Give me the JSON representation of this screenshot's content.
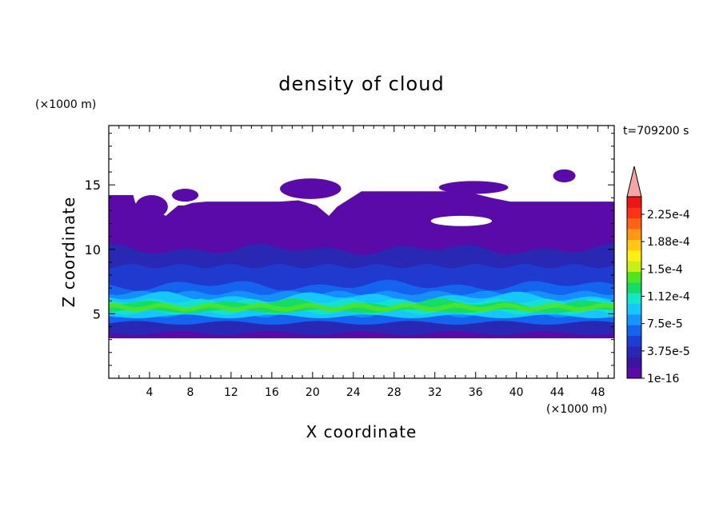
{
  "chart_data": {
    "type": "heatmap",
    "title": "density of cloud",
    "time_label": "t=709200 s",
    "xlabel": "X coordinate",
    "ylabel": "Z coordinate",
    "x_unit": "(×1000 m)",
    "y_unit": "(×1000 m)",
    "xlim": [
      0,
      49.6
    ],
    "ylim": [
      0,
      19.6
    ],
    "x_ticks": [
      4,
      8,
      12,
      16,
      20,
      24,
      28,
      32,
      36,
      40,
      44,
      48
    ],
    "y_ticks": [
      5,
      10,
      15
    ],
    "colorbar": {
      "label_levels": [
        "2.25e-4",
        "1.88e-4",
        "1.5e-4",
        "1.12e-4",
        "7.5e-5",
        "3.75e-5",
        "1e-16"
      ],
      "colors": [
        "#5a0aa8",
        "#3c14a0",
        "#2828b4",
        "#1e3cd2",
        "#1464f0",
        "#1496ff",
        "#14c8ff",
        "#14e6c8",
        "#14dc64",
        "#50e61e",
        "#c8f014",
        "#fff014",
        "#ffc814",
        "#ff9614",
        "#ff6414",
        "#ff3214",
        "#f01414"
      ],
      "overflow_color": "#f4a6a6"
    },
    "layers": [
      {
        "level": "1e-16",
        "bottom": 3.1,
        "top": 14.2,
        "top_profile": [
          [
            0,
            14.2
          ],
          [
            2.4,
            14.2
          ],
          [
            2.6,
            13.6
          ],
          [
            2.8,
            13.5
          ],
          [
            3.6,
            13.4
          ],
          [
            4.4,
            13.1
          ],
          [
            5.6,
            12.6
          ],
          [
            6.2,
            13.0
          ],
          [
            6.8,
            13.4
          ],
          [
            7.4,
            13.4
          ],
          [
            8.2,
            13.6
          ],
          [
            9.6,
            13.7
          ],
          [
            13.6,
            13.7
          ],
          [
            16.8,
            13.7
          ],
          [
            18.6,
            13.8
          ],
          [
            20.4,
            13.4
          ],
          [
            21.6,
            12.6
          ],
          [
            22.4,
            13.3
          ],
          [
            24.8,
            14.5
          ],
          [
            30.0,
            14.5
          ],
          [
            33.6,
            14.5
          ],
          [
            35.0,
            14.5
          ],
          [
            37.5,
            14.0
          ],
          [
            39.4,
            13.7
          ],
          [
            44.0,
            13.7
          ],
          [
            46.0,
            13.7
          ],
          [
            48.6,
            13.7
          ],
          [
            49.6,
            13.7
          ]
        ]
      },
      {
        "level": "3.75e-5",
        "bottom": 3.5,
        "top": 10.0
      },
      {
        "level": "7.5e-5",
        "bottom": 4.3,
        "top": 7.2
      },
      {
        "level": "1.12e-4",
        "bottom": 4.8,
        "top": 6.3
      },
      {
        "level": "1.5e-4",
        "bottom": 5.2,
        "top": 5.8
      }
    ],
    "patches": [
      {
        "shape": "blob",
        "cx": 4.2,
        "cy": 13.3,
        "rx": 1.6,
        "ry": 0.9,
        "level": "1e-16"
      },
      {
        "shape": "blob",
        "cx": 7.5,
        "cy": 14.2,
        "rx": 1.3,
        "ry": 0.5,
        "level": "1e-16"
      },
      {
        "shape": "blob",
        "cx": 19.8,
        "cy": 14.7,
        "rx": 3.0,
        "ry": 0.8,
        "level": "1e-16"
      },
      {
        "shape": "blob",
        "cx": 35.8,
        "cy": 14.8,
        "rx": 3.4,
        "ry": 0.5,
        "level": "1e-16"
      },
      {
        "shape": "blob",
        "cx": 44.7,
        "cy": 15.7,
        "rx": 1.1,
        "ry": 0.5,
        "level": "1e-16"
      },
      {
        "shape": "hole",
        "cx": 34.6,
        "cy": 12.2,
        "rx": 3.0,
        "ry": 0.4
      }
    ]
  }
}
